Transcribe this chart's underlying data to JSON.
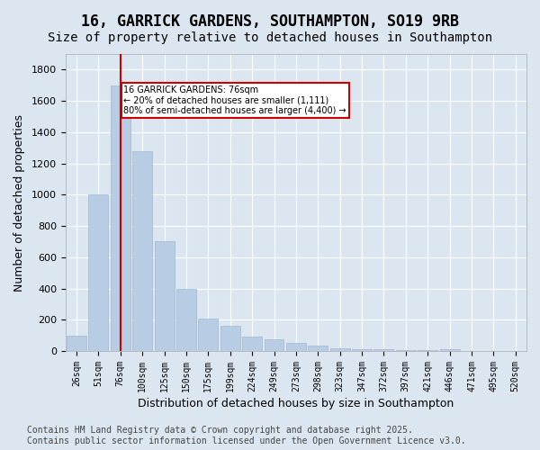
{
  "title1": "16, GARRICK GARDENS, SOUTHAMPTON, SO19 9RB",
  "title2": "Size of property relative to detached houses in Southampton",
  "xlabel": "Distribution of detached houses by size in Southampton",
  "ylabel": "Number of detached properties",
  "categories": [
    "26sqm",
    "51sqm",
    "76sqm",
    "100sqm",
    "125sqm",
    "150sqm",
    "175sqm",
    "199sqm",
    "224sqm",
    "249sqm",
    "273sqm",
    "298sqm",
    "323sqm",
    "347sqm",
    "372sqm",
    "397sqm",
    "421sqm",
    "446sqm",
    "471sqm",
    "495sqm",
    "520sqm"
  ],
  "values": [
    100,
    1000,
    1700,
    1280,
    700,
    400,
    205,
    160,
    90,
    75,
    50,
    35,
    20,
    10,
    10,
    5,
    5,
    10,
    0,
    0,
    0
  ],
  "bar_color": "#b8cce4",
  "bar_edge_color": "#a0b8d0",
  "background_color": "#dce6f1",
  "grid_color": "#ffffff",
  "vline_x": 2,
  "vline_color": "#cc0000",
  "annotation_text": "16 GARRICK GARDENS: 76sqm\n← 20% of detached houses are smaller (1,111)\n80% of semi-detached houses are larger (4,400) →",
  "annotation_box_color": "#cc0000",
  "footnote": "Contains HM Land Registry data © Crown copyright and database right 2025.\nContains public sector information licensed under the Open Government Licence v3.0.",
  "ylim": [
    0,
    1900
  ],
  "yticks": [
    0,
    200,
    400,
    600,
    800,
    1000,
    1200,
    1400,
    1600,
    1800
  ],
  "title1_fontsize": 12,
  "title2_fontsize": 10,
  "xlabel_fontsize": 9,
  "ylabel_fontsize": 9,
  "footnote_fontsize": 7
}
